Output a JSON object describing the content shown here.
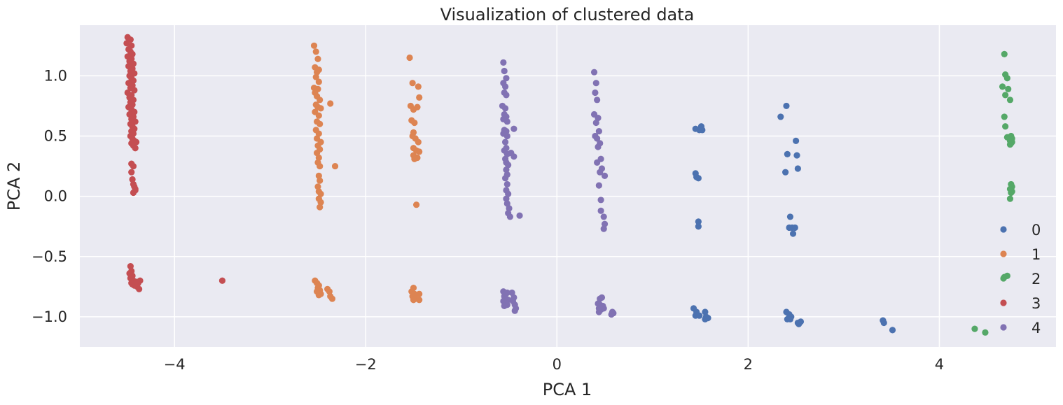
{
  "chart_data": {
    "type": "scatter",
    "title": "Visualization of clustered data",
    "xlabel": "PCA 1",
    "ylabel": "PCA 2",
    "xlim": [
      -4.99,
      5.22
    ],
    "ylim": [
      -1.25,
      1.42
    ],
    "xticks": [
      -4,
      -2,
      0,
      2,
      4
    ],
    "xtick_labels": [
      "−4",
      "−2",
      "0",
      "2",
      "4"
    ],
    "yticks": [
      -1.0,
      -0.5,
      0.0,
      0.5,
      1.0
    ],
    "ytick_labels": [
      "−1.0",
      "−0.5",
      "0.0",
      "0.5",
      "1.0"
    ],
    "grid": true,
    "legend_position": "lower-right",
    "colors": {
      "background": "#eaeaf2",
      "grid": "#ffffff",
      "c0": "#4c72b0",
      "c1": "#dd8452",
      "c2": "#55a868",
      "c3": "#c44e52",
      "c4": "#8172b3"
    },
    "series": [
      {
        "name": "0",
        "color": "#4c72b0",
        "points": [
          [
            1.45,
            0.56
          ],
          [
            1.49,
            0.55
          ],
          [
            1.51,
            0.58
          ],
          [
            1.52,
            0.55
          ],
          [
            1.45,
            0.19
          ],
          [
            1.46,
            0.16
          ],
          [
            1.48,
            0.15
          ],
          [
            1.48,
            -0.21
          ],
          [
            1.48,
            -0.25
          ],
          [
            1.43,
            -0.93
          ],
          [
            1.46,
            -0.96
          ],
          [
            1.45,
            -0.99
          ],
          [
            1.49,
            -0.99
          ],
          [
            1.55,
            -0.96
          ],
          [
            1.56,
            -1.0
          ],
          [
            1.55,
            -1.02
          ],
          [
            1.58,
            -1.01
          ],
          [
            2.34,
            0.66
          ],
          [
            2.4,
            0.75
          ],
          [
            2.5,
            0.46
          ],
          [
            2.41,
            0.35
          ],
          [
            2.51,
            0.34
          ],
          [
            2.52,
            0.23
          ],
          [
            2.39,
            0.2
          ],
          [
            2.44,
            -0.17
          ],
          [
            2.46,
            -0.26
          ],
          [
            2.49,
            -0.26
          ],
          [
            2.43,
            -0.26
          ],
          [
            2.47,
            -0.31
          ],
          [
            2.4,
            -0.96
          ],
          [
            2.43,
            -0.98
          ],
          [
            2.41,
            -1.02
          ],
          [
            2.44,
            -1.02
          ],
          [
            2.45,
            -1.0
          ],
          [
            2.52,
            -1.05
          ],
          [
            2.55,
            -1.04
          ],
          [
            2.53,
            -1.06
          ],
          [
            3.41,
            -1.03
          ],
          [
            3.42,
            -1.05
          ],
          [
            3.51,
            -1.11
          ]
        ]
      },
      {
        "name": "1",
        "color": "#dd8452",
        "points": [
          [
            -2.54,
            1.25
          ],
          [
            -2.52,
            1.2
          ],
          [
            -2.5,
            1.14
          ],
          [
            -2.53,
            1.07
          ],
          [
            -2.51,
            1.03
          ],
          [
            -2.49,
            1.05
          ],
          [
            -2.52,
            0.99
          ],
          [
            -2.49,
            0.95
          ],
          [
            -2.54,
            0.9
          ],
          [
            -2.5,
            0.89
          ],
          [
            -2.53,
            0.86
          ],
          [
            -2.51,
            0.83
          ],
          [
            -2.48,
            0.8
          ],
          [
            -2.52,
            0.76
          ],
          [
            -2.5,
            0.74
          ],
          [
            -2.47,
            0.73
          ],
          [
            -2.53,
            0.7
          ],
          [
            -2.49,
            0.67
          ],
          [
            -2.51,
            0.62
          ],
          [
            -2.48,
            0.6
          ],
          [
            -2.52,
            0.55
          ],
          [
            -2.49,
            0.52
          ],
          [
            -2.51,
            0.48
          ],
          [
            -2.47,
            0.45
          ],
          [
            -2.5,
            0.42
          ],
          [
            -2.48,
            0.39
          ],
          [
            -2.51,
            0.36
          ],
          [
            -2.49,
            0.32
          ],
          [
            -2.5,
            0.28
          ],
          [
            -2.48,
            0.25
          ],
          [
            -2.49,
            0.17
          ],
          [
            -2.48,
            0.13
          ],
          [
            -2.5,
            0.08
          ],
          [
            -2.49,
            0.04
          ],
          [
            -2.47,
            0.02
          ],
          [
            -2.49,
            -0.02
          ],
          [
            -2.47,
            -0.05
          ],
          [
            -2.48,
            -0.09
          ],
          [
            -2.37,
            0.77
          ],
          [
            -2.32,
            0.25
          ],
          [
            -2.53,
            -0.7
          ],
          [
            -2.51,
            -0.72
          ],
          [
            -2.49,
            -0.74
          ],
          [
            -2.5,
            -0.76
          ],
          [
            -2.48,
            -0.78
          ],
          [
            -2.51,
            -0.79
          ],
          [
            -2.47,
            -0.81
          ],
          [
            -2.49,
            -0.82
          ],
          [
            -2.4,
            -0.77
          ],
          [
            -2.38,
            -0.79
          ],
          [
            -2.37,
            -0.83
          ],
          [
            -2.35,
            -0.85
          ],
          [
            -1.54,
            1.15
          ],
          [
            -1.51,
            0.94
          ],
          [
            -1.45,
            0.91
          ],
          [
            -1.44,
            0.82
          ],
          [
            -1.53,
            0.75
          ],
          [
            -1.5,
            0.72
          ],
          [
            -1.46,
            0.74
          ],
          [
            -1.52,
            0.63
          ],
          [
            -1.49,
            0.61
          ],
          [
            -1.5,
            0.53
          ],
          [
            -1.51,
            0.5
          ],
          [
            -1.48,
            0.48
          ],
          [
            -1.45,
            0.45
          ],
          [
            -1.5,
            0.4
          ],
          [
            -1.47,
            0.38
          ],
          [
            -1.44,
            0.37
          ],
          [
            -1.5,
            0.34
          ],
          [
            -1.46,
            0.32
          ],
          [
            -1.49,
            0.31
          ],
          [
            -1.47,
            -0.07
          ],
          [
            -1.52,
            -0.79
          ],
          [
            -1.5,
            -0.76
          ],
          [
            -1.49,
            -0.81
          ],
          [
            -1.51,
            -0.83
          ],
          [
            -1.48,
            -0.85
          ],
          [
            -1.5,
            -0.86
          ],
          [
            -1.44,
            -0.81
          ],
          [
            -1.44,
            -0.86
          ]
        ]
      },
      {
        "name": "2",
        "color": "#55a868",
        "points": [
          [
            4.68,
            1.18
          ],
          [
            4.69,
            1.01
          ],
          [
            4.71,
            0.98
          ],
          [
            4.66,
            0.91
          ],
          [
            4.72,
            0.89
          ],
          [
            4.69,
            0.84
          ],
          [
            4.74,
            0.8
          ],
          [
            4.68,
            0.66
          ],
          [
            4.69,
            0.58
          ],
          [
            4.71,
            0.49
          ],
          [
            4.75,
            0.5
          ],
          [
            4.76,
            0.48
          ],
          [
            4.74,
            0.46
          ],
          [
            4.75,
            0.44
          ],
          [
            4.74,
            0.43
          ],
          [
            4.76,
            0.45
          ],
          [
            4.75,
            0.1
          ],
          [
            4.76,
            0.08
          ],
          [
            4.74,
            0.06
          ],
          [
            4.76,
            0.04
          ],
          [
            4.75,
            0.03
          ],
          [
            4.74,
            -0.02
          ],
          [
            4.68,
            -0.67
          ],
          [
            4.71,
            -0.66
          ],
          [
            4.37,
            -1.1
          ],
          [
            4.48,
            -1.13
          ]
        ]
      },
      {
        "name": "3",
        "color": "#c44e52",
        "points": [
          [
            -4.49,
            1.32
          ],
          [
            -4.46,
            1.3
          ],
          [
            -4.5,
            1.27
          ],
          [
            -4.45,
            1.25
          ],
          [
            -4.48,
            1.22
          ],
          [
            -4.46,
            1.2
          ],
          [
            -4.44,
            1.18
          ],
          [
            -4.49,
            1.16
          ],
          [
            -4.45,
            1.14
          ],
          [
            -4.47,
            1.12
          ],
          [
            -4.43,
            1.1
          ],
          [
            -4.48,
            1.08
          ],
          [
            -4.44,
            1.06
          ],
          [
            -4.46,
            1.04
          ],
          [
            -4.42,
            1.02
          ],
          [
            -4.47,
            1.0
          ],
          [
            -4.45,
            0.98
          ],
          [
            -4.43,
            0.96
          ],
          [
            -4.48,
            0.94
          ],
          [
            -4.44,
            0.92
          ],
          [
            -4.46,
            0.9
          ],
          [
            -4.42,
            0.88
          ],
          [
            -4.49,
            0.86
          ],
          [
            -4.45,
            0.84
          ],
          [
            -4.47,
            0.82
          ],
          [
            -4.43,
            0.8
          ],
          [
            -4.46,
            0.78
          ],
          [
            -4.44,
            0.76
          ],
          [
            -4.48,
            0.74
          ],
          [
            -4.45,
            0.72
          ],
          [
            -4.42,
            0.7
          ],
          [
            -4.47,
            0.68
          ],
          [
            -4.43,
            0.66
          ],
          [
            -4.45,
            0.64
          ],
          [
            -4.41,
            0.62
          ],
          [
            -4.46,
            0.6
          ],
          [
            -4.44,
            0.58
          ],
          [
            -4.42,
            0.56
          ],
          [
            -4.45,
            0.54
          ],
          [
            -4.43,
            0.52
          ],
          [
            -4.46,
            0.5
          ],
          [
            -4.44,
            0.48
          ],
          [
            -4.42,
            0.46
          ],
          [
            -4.45,
            0.44
          ],
          [
            -4.4,
            0.45
          ],
          [
            -4.43,
            0.42
          ],
          [
            -4.41,
            0.4
          ],
          [
            -4.45,
            0.27
          ],
          [
            -4.43,
            0.25
          ],
          [
            -4.45,
            0.2
          ],
          [
            -4.44,
            0.14
          ],
          [
            -4.43,
            0.1
          ],
          [
            -4.42,
            0.08
          ],
          [
            -4.41,
            0.05
          ],
          [
            -4.43,
            0.03
          ],
          [
            -4.41,
            0.06
          ],
          [
            -4.46,
            -0.58
          ],
          [
            -4.45,
            -0.62
          ],
          [
            -4.47,
            -0.64
          ],
          [
            -4.44,
            -0.66
          ],
          [
            -4.46,
            -0.68
          ],
          [
            -4.43,
            -0.7
          ],
          [
            -4.45,
            -0.72
          ],
          [
            -4.42,
            -0.74
          ],
          [
            -4.44,
            -0.73
          ],
          [
            -4.4,
            -0.71
          ],
          [
            -4.38,
            -0.72
          ],
          [
            -4.36,
            -0.7
          ],
          [
            -4.39,
            -0.75
          ],
          [
            -4.37,
            -0.77
          ],
          [
            -3.5,
            -0.7
          ]
        ]
      },
      {
        "name": "4",
        "color": "#8172b3",
        "points": [
          [
            -0.56,
            1.11
          ],
          [
            -0.55,
            1.04
          ],
          [
            -0.53,
            0.98
          ],
          [
            -0.56,
            0.94
          ],
          [
            -0.54,
            0.91
          ],
          [
            -0.55,
            0.86
          ],
          [
            -0.53,
            0.84
          ],
          [
            -0.57,
            0.75
          ],
          [
            -0.54,
            0.73
          ],
          [
            -0.55,
            0.68
          ],
          [
            -0.53,
            0.66
          ],
          [
            -0.56,
            0.64
          ],
          [
            -0.52,
            0.62
          ],
          [
            -0.55,
            0.55
          ],
          [
            -0.53,
            0.54
          ],
          [
            -0.56,
            0.52
          ],
          [
            -0.52,
            0.5
          ],
          [
            -0.54,
            0.45
          ],
          [
            -0.53,
            0.4
          ],
          [
            -0.55,
            0.38
          ],
          [
            -0.52,
            0.35
          ],
          [
            -0.54,
            0.31
          ],
          [
            -0.53,
            0.28
          ],
          [
            -0.51,
            0.26
          ],
          [
            -0.53,
            0.22
          ],
          [
            -0.52,
            0.18
          ],
          [
            -0.54,
            0.15
          ],
          [
            -0.52,
            0.1
          ],
          [
            -0.53,
            0.05
          ],
          [
            -0.51,
            0.02
          ],
          [
            -0.53,
            -0.02
          ],
          [
            -0.52,
            -0.06
          ],
          [
            -0.5,
            -0.1
          ],
          [
            -0.51,
            -0.14
          ],
          [
            -0.49,
            -0.17
          ],
          [
            -0.45,
            0.56
          ],
          [
            -0.48,
            0.36
          ],
          [
            -0.45,
            0.33
          ],
          [
            -0.39,
            -0.16
          ],
          [
            -0.56,
            -0.79
          ],
          [
            -0.54,
            -0.81
          ],
          [
            -0.52,
            -0.8
          ],
          [
            -0.55,
            -0.83
          ],
          [
            -0.53,
            -0.85
          ],
          [
            -0.56,
            -0.87
          ],
          [
            -0.51,
            -0.86
          ],
          [
            -0.54,
            -0.89
          ],
          [
            -0.52,
            -0.9
          ],
          [
            -0.55,
            -0.91
          ],
          [
            -0.47,
            -0.8
          ],
          [
            -0.45,
            -0.84
          ],
          [
            -0.46,
            -0.87
          ],
          [
            -0.44,
            -0.9
          ],
          [
            -0.43,
            -0.93
          ],
          [
            -0.44,
            -0.95
          ],
          [
            0.39,
            1.03
          ],
          [
            0.41,
            0.94
          ],
          [
            0.4,
            0.86
          ],
          [
            0.42,
            0.8
          ],
          [
            0.39,
            0.68
          ],
          [
            0.43,
            0.65
          ],
          [
            0.41,
            0.61
          ],
          [
            0.44,
            0.54
          ],
          [
            0.4,
            0.5
          ],
          [
            0.42,
            0.48
          ],
          [
            0.45,
            0.44
          ],
          [
            0.43,
            0.41
          ],
          [
            0.46,
            0.31
          ],
          [
            0.42,
            0.28
          ],
          [
            0.47,
            0.23
          ],
          [
            0.45,
            0.2
          ],
          [
            0.5,
            0.17
          ],
          [
            0.44,
            0.09
          ],
          [
            0.46,
            -0.03
          ],
          [
            0.46,
            -0.12
          ],
          [
            0.49,
            -0.17
          ],
          [
            0.5,
            -0.23
          ],
          [
            0.49,
            -0.27
          ],
          [
            0.45,
            -0.85
          ],
          [
            0.47,
            -0.84
          ],
          [
            0.43,
            -0.89
          ],
          [
            0.45,
            -0.9
          ],
          [
            0.48,
            -0.91
          ],
          [
            0.44,
            -0.93
          ],
          [
            0.46,
            -0.94
          ],
          [
            0.49,
            -0.93
          ],
          [
            0.44,
            -0.96
          ],
          [
            0.58,
            -0.96
          ],
          [
            0.59,
            -0.97
          ],
          [
            0.57,
            -0.98
          ]
        ]
      }
    ]
  }
}
